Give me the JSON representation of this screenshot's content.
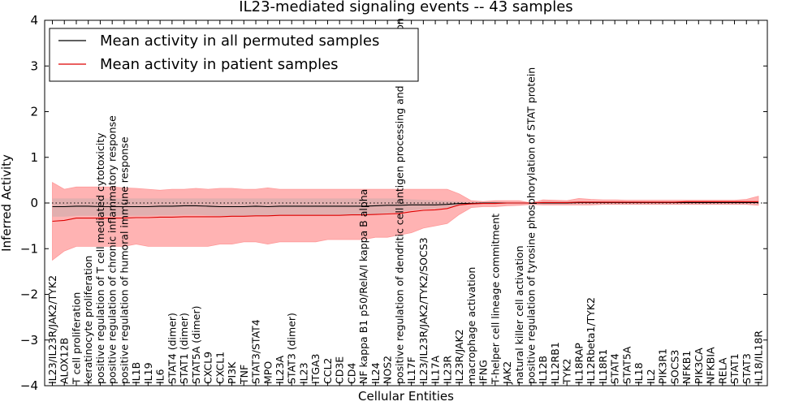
{
  "chart_data": {
    "type": "line",
    "title": "IL23-mediated signaling events -- 43 samples",
    "xlabel": "Cellular Entities",
    "ylabel": "Inferred Activity",
    "ylim": [
      -4,
      4
    ],
    "yticks": [
      -4,
      -3,
      -2,
      -1,
      0,
      1,
      2,
      3,
      4
    ],
    "legend": {
      "position": "top-left",
      "entries": [
        {
          "label": "Mean activity in all permuted samples",
          "color": "#000000"
        },
        {
          "label": "Mean activity in patient samples",
          "color": "#dd0000"
        }
      ]
    },
    "colors": {
      "permuted": "#000000",
      "patient": "#dd0000",
      "band_patient": "#ff9999",
      "band_permuted": "#aaaaaa"
    },
    "categories": [
      "IL23/IL23R/JAK2/TYK2",
      "ALOX12B",
      "T cell proliferation",
      "keratinocyte proliferation",
      "positive regulation of T cell mediated cytotoxicity",
      "positive regulation of chronic inflammatory response",
      "positive regulation of humoral immune response",
      "IL1B",
      "IL19",
      "IL6",
      "STAT4 (dimer)",
      "STAT1 (dimer)",
      "STAT5A (dimer)",
      "CXCL9",
      "CXCL1",
      "PI3K",
      "TNF",
      "STAT3/STAT4",
      "MPO",
      "IL23A",
      "STAT3 (dimer)",
      "IL23",
      "ITGA3",
      "CCL2",
      "CD3E",
      "CD4",
      "NF kappa B1 p50/RelA/I kappa B alpha",
      "IL24",
      "NOS2",
      "positive regulation of dendritic cell antigen processing and presentation",
      "IL17F",
      "IL23/IL23R/JAK2/TYK2/SOCS3",
      "IL17A",
      "IL23R",
      "IL23R/JAK2",
      "macrophage activation",
      "IFNG",
      "T-helper cell lineage commitment",
      "JAK2",
      "natural killer cell activation",
      "positive regulation of tyrosine phosphorylation of STAT protein",
      "IL12B",
      "IL12RB1",
      "TYK2",
      "IL18RAP",
      "IL12Rbeta1/TYK2",
      "IL18R1",
      "STAT4",
      "STAT5A",
      "IL18",
      "IL2",
      "PIK3R1",
      "SOCS3",
      "NFKB1",
      "PIK3CA",
      "NFKBIA",
      "RELA",
      "STAT1",
      "STAT3",
      "IL18/IL18R"
    ],
    "series": [
      {
        "name": "Mean activity in patient samples",
        "values": [
          -0.4,
          -0.38,
          -0.33,
          -0.33,
          -0.33,
          -0.33,
          -0.33,
          -0.32,
          -0.32,
          -0.31,
          -0.31,
          -0.3,
          -0.3,
          -0.3,
          -0.3,
          -0.29,
          -0.29,
          -0.28,
          -0.28,
          -0.27,
          -0.27,
          -0.27,
          -0.27,
          -0.27,
          -0.27,
          -0.26,
          -0.26,
          -0.25,
          -0.24,
          -0.23,
          -0.19,
          -0.16,
          -0.15,
          -0.12,
          -0.04,
          -0.02,
          -0.01,
          -0.01,
          0.0,
          0.0,
          0.0,
          0.01,
          0.01,
          0.01,
          0.02,
          0.02,
          0.02,
          0.02,
          0.02,
          0.02,
          0.02,
          0.02,
          0.02,
          0.03,
          0.03,
          0.03,
          0.03,
          0.03,
          0.03,
          0.03
        ]
      },
      {
        "name": "Mean activity in all permuted samples",
        "values": [
          -0.08,
          -0.08,
          -0.07,
          -0.07,
          -0.08,
          -0.08,
          -0.08,
          -0.08,
          -0.08,
          -0.07,
          -0.07,
          -0.06,
          -0.06,
          -0.07,
          -0.08,
          -0.08,
          -0.08,
          -0.07,
          -0.08,
          -0.07,
          -0.07,
          -0.07,
          -0.07,
          -0.07,
          -0.07,
          -0.07,
          -0.07,
          -0.06,
          -0.05,
          -0.05,
          -0.04,
          -0.04,
          -0.04,
          -0.03,
          -0.01,
          -0.01,
          0.0,
          0.0,
          0.0,
          0.0,
          0.0,
          0.0,
          0.0,
          0.0,
          0.01,
          0.01,
          0.01,
          0.01,
          0.01,
          0.01,
          0.01,
          0.01,
          0.01,
          0.01,
          0.01,
          0.01,
          0.01,
          0.01,
          0.01,
          0.01
        ]
      },
      {
        "name": "patient band upper",
        "values": [
          0.45,
          0.3,
          0.35,
          0.35,
          0.35,
          0.35,
          0.33,
          0.32,
          0.3,
          0.28,
          0.3,
          0.3,
          0.32,
          0.3,
          0.32,
          0.32,
          0.3,
          0.3,
          0.33,
          0.3,
          0.3,
          0.3,
          0.3,
          0.3,
          0.3,
          0.3,
          0.3,
          0.3,
          0.3,
          0.3,
          0.3,
          0.3,
          0.3,
          0.3,
          0.2,
          0.05,
          0.03,
          0.05,
          0.05,
          0.05,
          0.0,
          0.07,
          0.06,
          0.05,
          0.1,
          0.08,
          0.07,
          0.07,
          0.06,
          0.06,
          0.06,
          0.06,
          0.06,
          0.06,
          0.06,
          0.06,
          0.06,
          0.06,
          0.08,
          0.15
        ]
      },
      {
        "name": "patient band lower",
        "values": [
          -1.25,
          -1.05,
          -0.95,
          -0.95,
          -0.95,
          -0.95,
          -0.95,
          -0.9,
          -0.95,
          -0.95,
          -0.95,
          -0.95,
          -0.95,
          -0.95,
          -0.9,
          -0.9,
          -0.85,
          -0.85,
          -0.9,
          -0.85,
          -0.85,
          -0.85,
          -0.85,
          -0.8,
          -0.8,
          -0.8,
          -0.8,
          -0.75,
          -0.75,
          -0.7,
          -0.65,
          -0.55,
          -0.5,
          -0.45,
          -0.25,
          -0.1,
          -0.08,
          -0.08,
          -0.06,
          -0.05,
          -0.03,
          -0.04,
          -0.04,
          -0.04,
          -0.04,
          -0.04,
          -0.03,
          -0.03,
          -0.03,
          -0.03,
          -0.03,
          -0.03,
          -0.03,
          -0.03,
          -0.03,
          -0.03,
          -0.03,
          -0.03,
          -0.03,
          -0.05
        ]
      },
      {
        "name": "permuted band upper",
        "values": [
          0.1,
          0.1,
          0.1,
          0.1,
          0.1,
          0.1,
          0.1,
          0.1,
          0.1,
          0.1,
          0.1,
          0.1,
          0.1,
          0.1,
          0.1,
          0.1,
          0.1,
          0.1,
          0.1,
          0.1,
          0.1,
          0.1,
          0.1,
          0.1,
          0.1,
          0.1,
          0.1,
          0.1,
          0.1,
          0.1,
          0.08,
          0.07,
          0.06,
          0.05,
          0.03,
          0.02,
          0.02,
          0.02,
          0.02,
          0.02,
          0.01,
          0.03,
          0.03,
          0.03,
          0.03,
          0.03,
          0.03,
          0.03,
          0.03,
          0.03,
          0.03,
          0.03,
          0.03,
          0.03,
          0.03,
          0.03,
          0.03,
          0.03,
          0.03,
          0.04
        ]
      },
      {
        "name": "permuted band lower",
        "values": [
          -0.3,
          -0.3,
          -0.28,
          -0.28,
          -0.28,
          -0.28,
          -0.28,
          -0.28,
          -0.28,
          -0.27,
          -0.27,
          -0.26,
          -0.26,
          -0.27,
          -0.28,
          -0.28,
          -0.28,
          -0.27,
          -0.28,
          -0.27,
          -0.27,
          -0.27,
          -0.27,
          -0.26,
          -0.26,
          -0.26,
          -0.26,
          -0.24,
          -0.22,
          -0.2,
          -0.16,
          -0.14,
          -0.12,
          -0.1,
          -0.05,
          -0.03,
          -0.02,
          -0.02,
          -0.02,
          -0.02,
          -0.02,
          -0.02,
          -0.02,
          -0.02,
          -0.02,
          -0.02,
          -0.02,
          -0.02,
          -0.02,
          -0.02,
          -0.02,
          -0.02,
          -0.02,
          -0.02,
          -0.02,
          -0.02,
          -0.02,
          -0.02,
          -0.02,
          -0.02
        ]
      }
    ]
  }
}
